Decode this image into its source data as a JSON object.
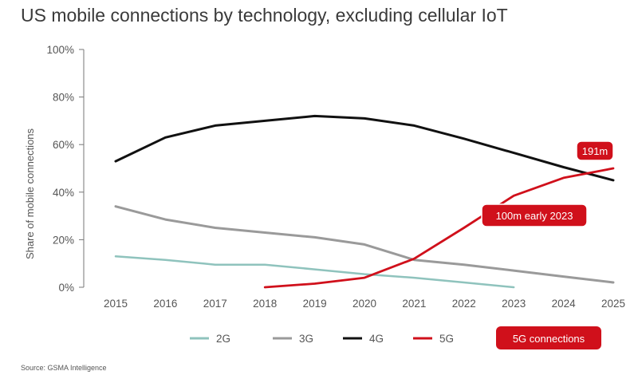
{
  "title": "US mobile connections by technology, excluding cellular IoT",
  "source": "Source: GSMA Intelligence",
  "colors": {
    "2G": "#8fc3bd",
    "3G": "#9a9a9a",
    "4G": "#111111",
    "5G": "#d0101b",
    "axis": "#777777"
  },
  "chart_data": {
    "type": "line",
    "title": "US mobile connections by technology, excluding cellular IoT",
    "ylabel": "Share of mobile connections",
    "xlabel": "",
    "ylim": [
      0,
      100
    ],
    "yticks": [
      0,
      20,
      40,
      60,
      80,
      100
    ],
    "ytick_labels": [
      "0%",
      "20%",
      "40%",
      "60%",
      "80%",
      "100%"
    ],
    "x": [
      2015,
      2016,
      2017,
      2018,
      2019,
      2020,
      2021,
      2022,
      2023,
      2024,
      2025
    ],
    "grid": false,
    "legend": "bottom",
    "series": [
      {
        "name": "2G",
        "values": [
          13,
          11.5,
          9.5,
          9.5,
          7.5,
          5.5,
          4,
          2,
          0,
          null,
          null
        ]
      },
      {
        "name": "3G",
        "values": [
          34,
          28.5,
          25,
          23,
          21,
          18,
          11.5,
          9.5,
          7,
          4.5,
          2
        ]
      },
      {
        "name": "4G",
        "values": [
          53,
          63,
          68,
          70,
          72,
          71,
          68,
          62.5,
          56.5,
          50.5,
          45
        ]
      },
      {
        "name": "5G",
        "values": [
          null,
          null,
          null,
          0,
          1.5,
          4,
          12,
          25,
          38.5,
          46,
          50
        ]
      }
    ],
    "annotations": [
      {
        "text": "191m",
        "x": 2025,
        "y": 50
      },
      {
        "text": "100m early 2023",
        "x": 2023,
        "y": 38.5
      }
    ],
    "legend_callout": "5G connections"
  }
}
